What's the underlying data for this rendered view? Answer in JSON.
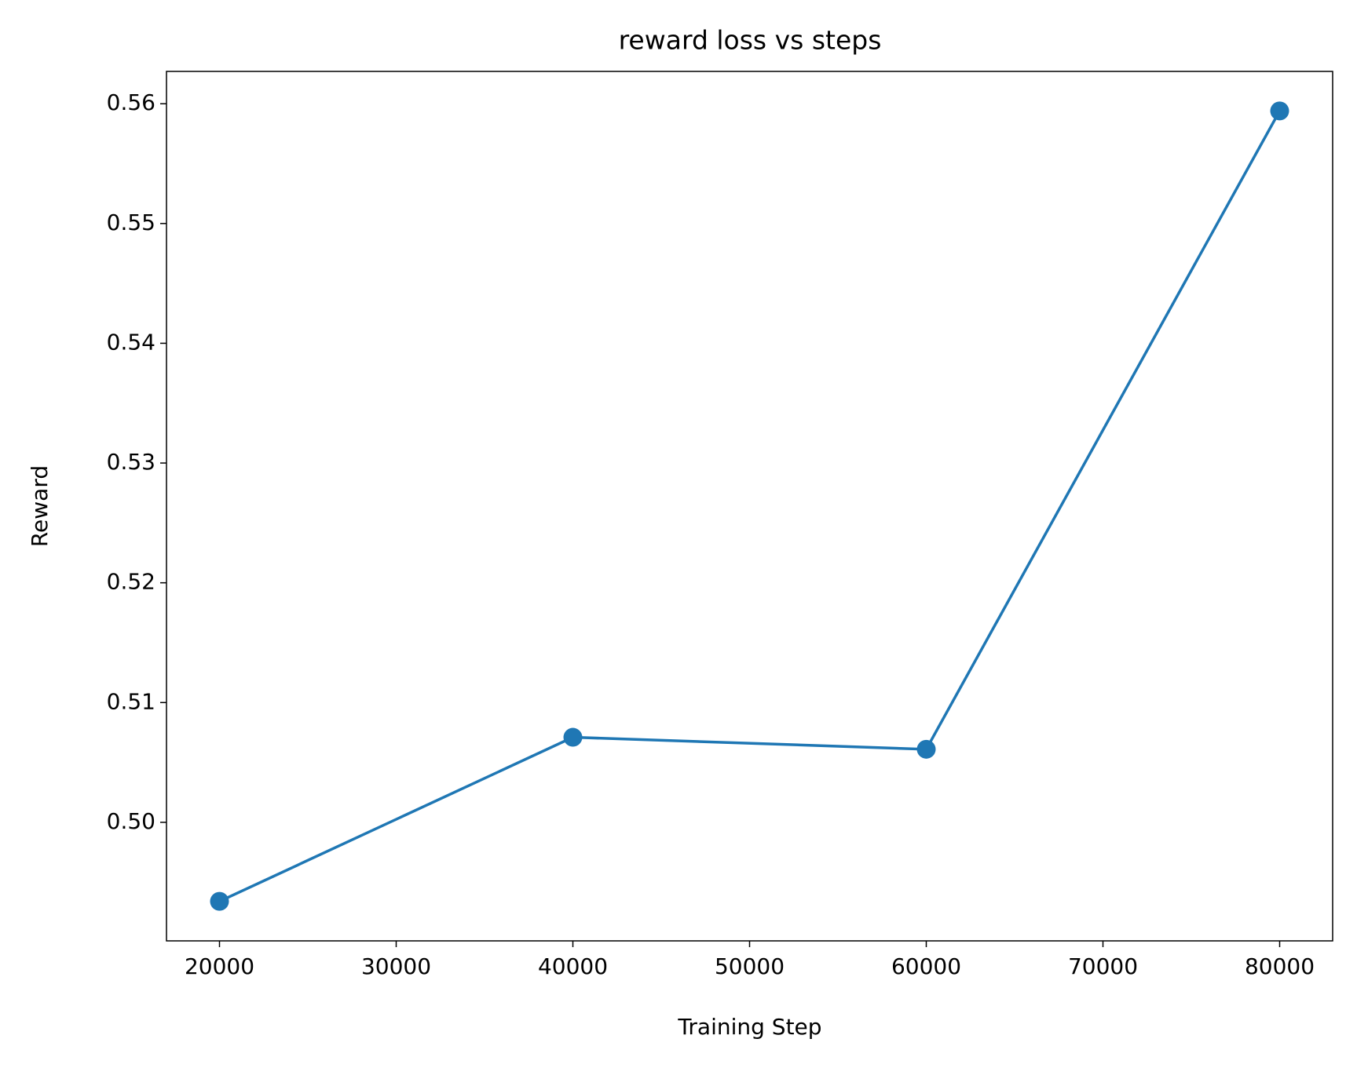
{
  "chart_data": {
    "type": "line",
    "title": "reward loss vs steps",
    "x_label": "Training Step",
    "y_label": "Reward",
    "x": [
      20000,
      40000,
      60000,
      80000
    ],
    "series": [
      {
        "color": "#1f77b4",
        "values": [
          0.4934,
          0.5071,
          0.5061,
          0.5594
        ]
      }
    ],
    "xlim": [
      17000,
      83000
    ],
    "xticks": [
      20000,
      30000,
      40000,
      50000,
      60000,
      70000,
      80000
    ],
    "ylim": [
      0.4901,
      0.5627
    ],
    "yticks": [
      {
        "value": 0.5,
        "label": "0.50"
      },
      0.51,
      0.52,
      0.53,
      0.54,
      0.55,
      0.56
    ],
    "grid": false,
    "markers": true
  }
}
